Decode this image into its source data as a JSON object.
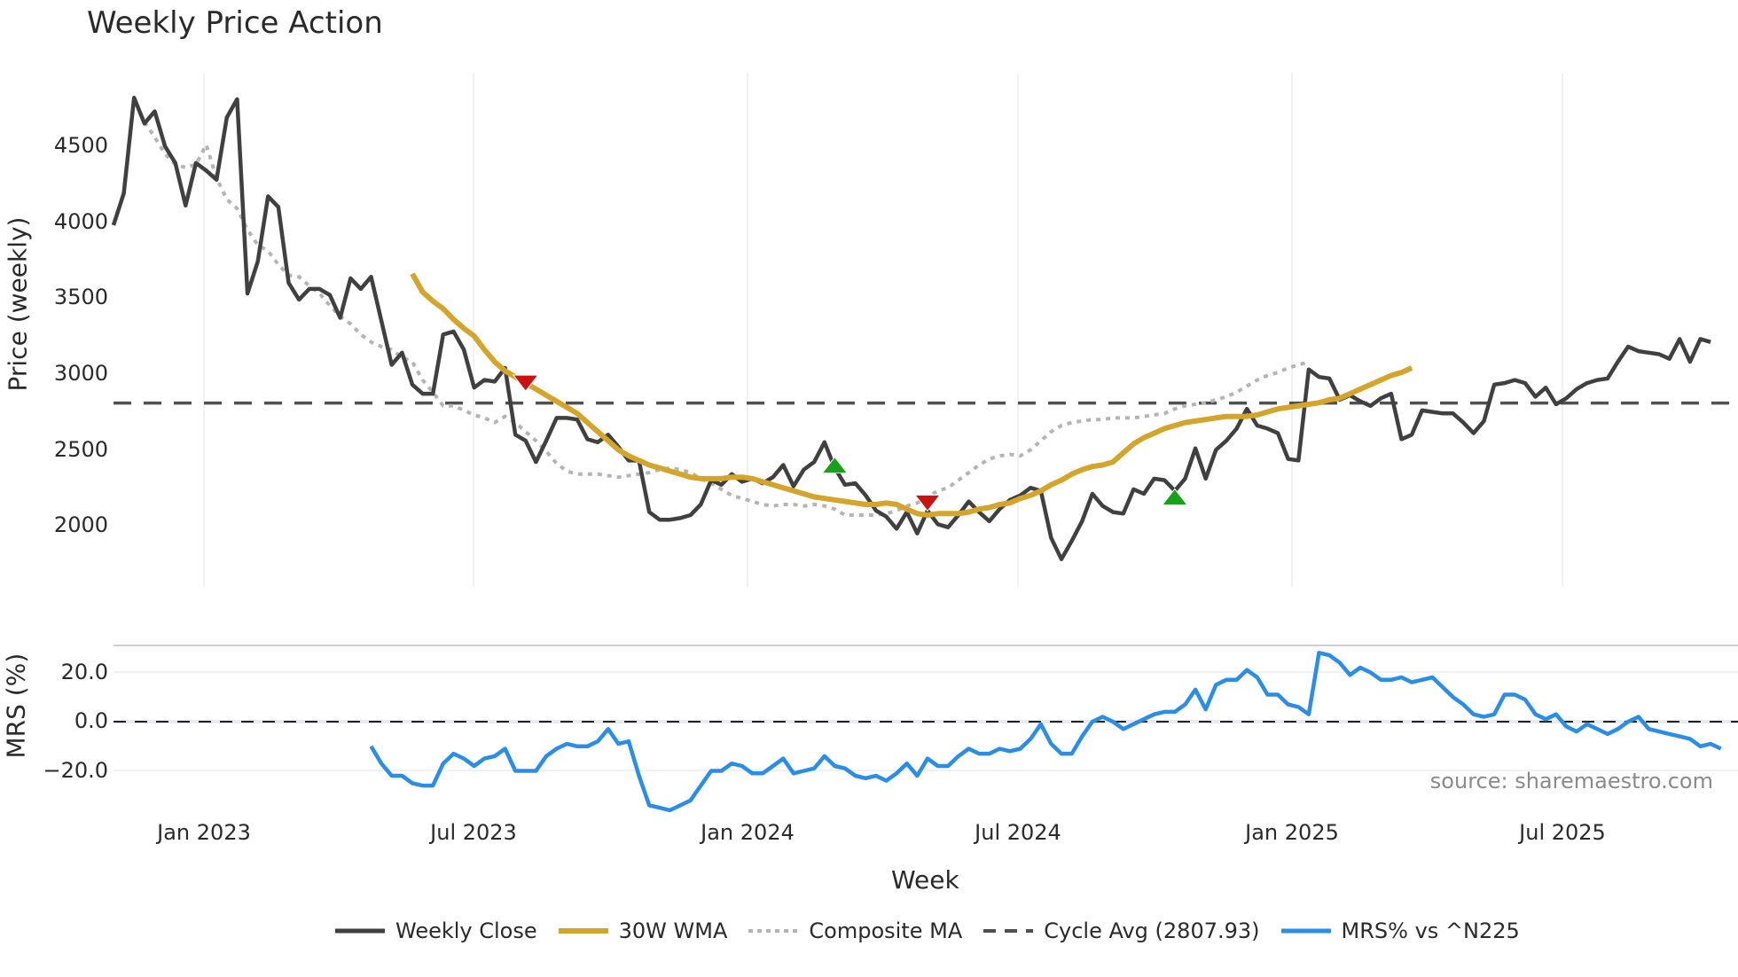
{
  "title": "Weekly Price Action",
  "source": "source: sharemaestro.com",
  "axes": {
    "price_ylabel": "Price (weekly)",
    "mrs_ylabel": "MRS (%)",
    "xlabel": "Week",
    "price_ticks": [
      "4500",
      "4000",
      "3500",
      "3000",
      "2500",
      "2000"
    ],
    "mrs_ticks": [
      "20.0",
      "0.0",
      "−20.0"
    ],
    "x_ticks": [
      "Jan 2023",
      "Jul 2023",
      "Jan 2024",
      "Jul 2024",
      "Jan 2025",
      "Jul 2025"
    ]
  },
  "legend": [
    {
      "label": "Weekly Close",
      "color": "#404040",
      "style": "solid"
    },
    {
      "label": "30W WMA",
      "color": "#d4a52a",
      "style": "solid"
    },
    {
      "label": "Composite MA",
      "color": "#b4b4b4",
      "style": "dotted"
    },
    {
      "label": "Cycle Avg (2807.93)",
      "color": "#505050",
      "style": "dashed"
    },
    {
      "label": "MRS% vs ^N225",
      "color": "#2a8ee8",
      "style": "solid"
    }
  ],
  "chart_data": [
    {
      "type": "line",
      "title": "Weekly Price Action",
      "xlabel": "Week",
      "ylabel": "Price (weekly)",
      "ylim": [
        1600,
        4950
      ],
      "x_start": "2022-10 (weekly)",
      "x_tick_labels": [
        "Jan 2023",
        "Jul 2023",
        "Jan 2024",
        "Jul 2024",
        "Jan 2025",
        "Jul 2025"
      ],
      "grid": "vertical only",
      "legend_position": "bottom",
      "series": [
        {
          "name": "Weekly Close",
          "color": "#404040",
          "values": [
            3980,
            4190,
            4820,
            4650,
            4730,
            4500,
            4390,
            4110,
            4390,
            4340,
            4280,
            4690,
            4810,
            3530,
            3740,
            4170,
            4100,
            3600,
            3490,
            3560,
            3560,
            3520,
            3370,
            3630,
            3560,
            3640,
            3350,
            3060,
            3140,
            2930,
            2870,
            2870,
            3260,
            3280,
            3160,
            2910,
            2960,
            2950,
            3040,
            2600,
            2560,
            2420,
            2560,
            2710,
            2710,
            2700,
            2570,
            2550,
            2600,
            2520,
            2430,
            2430,
            2090,
            2040,
            2040,
            2050,
            2070,
            2140,
            2300,
            2270,
            2340,
            2290,
            2310,
            2280,
            2320,
            2400,
            2260,
            2370,
            2420,
            2550,
            2380,
            2270,
            2280,
            2200,
            2100,
            2060,
            1980,
            2090,
            1950,
            2100,
            2010,
            1990,
            2070,
            2160,
            2090,
            2030,
            2110,
            2170,
            2200,
            2250,
            2230,
            1920,
            1780,
            1900,
            2030,
            2210,
            2130,
            2090,
            2080,
            2240,
            2210,
            2310,
            2300,
            2230,
            2310,
            2510,
            2310,
            2500,
            2560,
            2640,
            2770,
            2660,
            2640,
            2610,
            2440,
            2430,
            3030,
            2980,
            2970,
            2830,
            2860,
            2820,
            2790,
            2840,
            2870,
            2570,
            2600,
            2760,
            2750,
            2740,
            2740,
            2680,
            2610,
            2690,
            2930,
            2940,
            2960,
            2940,
            2850,
            2910,
            2800,
            2840,
            2900,
            2940,
            2960,
            2970,
            3080,
            3180,
            3150,
            3140,
            3130,
            3100,
            3230,
            3080,
            3230,
            3210
          ]
        },
        {
          "name": "30W WMA",
          "color": "#d4a52a",
          "start_index": 29,
          "values": [
            3660,
            3540,
            3480,
            3430,
            3360,
            3300,
            3250,
            3160,
            3080,
            3020,
            2980,
            2940,
            2900,
            2860,
            2820,
            2780,
            2740,
            2680,
            2620,
            2560,
            2500,
            2460,
            2430,
            2400,
            2380,
            2360,
            2340,
            2320,
            2310,
            2310,
            2310,
            2320,
            2320,
            2310,
            2290,
            2270,
            2250,
            2230,
            2210,
            2190,
            2180,
            2170,
            2160,
            2150,
            2140,
            2140,
            2150,
            2140,
            2110,
            2080,
            2070,
            2080,
            2080,
            2080,
            2090,
            2110,
            2120,
            2140,
            2150,
            2180,
            2200,
            2230,
            2270,
            2300,
            2340,
            2370,
            2390,
            2400,
            2420,
            2480,
            2540,
            2580,
            2610,
            2640,
            2660,
            2680,
            2690,
            2700,
            2710,
            2720,
            2720,
            2720,
            2730,
            2750,
            2770,
            2780,
            2790,
            2800,
            2810,
            2830,
            2840,
            2870,
            2900,
            2930,
            2960,
            2990,
            3010,
            3040
          ]
        },
        {
          "name": "Composite MA",
          "color": "#b4b4b4",
          "start_index": 3,
          "values": [
            4660,
            4560,
            4450,
            4380,
            4360,
            4380,
            4510,
            4290,
            4150,
            4090,
            3950,
            3850,
            3810,
            3720,
            3650,
            3640,
            3580,
            3530,
            3450,
            3380,
            3330,
            3260,
            3210,
            3180,
            3160,
            3110,
            3080,
            2960,
            2880,
            2790,
            2790,
            2760,
            2730,
            2710,
            2680,
            2720,
            2680,
            2620,
            2560,
            2490,
            2410,
            2360,
            2340,
            2340,
            2340,
            2330,
            2320,
            2330,
            2340,
            2350,
            2370,
            2380,
            2370,
            2350,
            2310,
            2280,
            2240,
            2200,
            2180,
            2160,
            2140,
            2130,
            2140,
            2140,
            2130,
            2140,
            2130,
            2110,
            2070,
            2070,
            2070,
            2070,
            2080,
            2100,
            2130,
            2150,
            2190,
            2230,
            2250,
            2300,
            2350,
            2400,
            2440,
            2460,
            2470,
            2460,
            2500,
            2560,
            2620,
            2660,
            2680,
            2690,
            2700,
            2700,
            2710,
            2710,
            2710,
            2720,
            2730,
            2740,
            2770,
            2790,
            2800,
            2810,
            2830,
            2850,
            2880,
            2920,
            2960,
            2990,
            3010,
            3040,
            3060,
            3080
          ]
        },
        {
          "name": "Cycle Avg",
          "color": "#505050",
          "constant": 2807.93
        }
      ],
      "markers": [
        {
          "type": "sell",
          "shape": "triangle-down",
          "color": "#cc1111",
          "x_index": 40,
          "value": 2940
        },
        {
          "type": "buy",
          "shape": "triangle-up",
          "color": "#1aa11a",
          "x_index": 70,
          "value": 2400
        },
        {
          "type": "sell",
          "shape": "triangle-down",
          "color": "#cc1111",
          "x_index": 79,
          "value": 2150
        },
        {
          "type": "buy",
          "shape": "triangle-up",
          "color": "#1aa11a",
          "x_index": 103,
          "value": 2190
        }
      ]
    },
    {
      "type": "line",
      "title": "MRS",
      "ylabel": "MRS (%)",
      "ylim": [
        -38,
        32
      ],
      "series": [
        {
          "name": "MRS% vs ^N225",
          "color": "#2a8ee8",
          "start_index": 25,
          "values": [
            -10,
            -17,
            -22,
            -22,
            -25,
            -26,
            -26,
            -17,
            -13,
            -15,
            -18,
            -15,
            -14,
            -11,
            -20,
            -20,
            -20,
            -14,
            -11,
            -9,
            -10,
            -10,
            -8,
            -3,
            -9,
            -8,
            -22,
            -34,
            -35,
            -36,
            -34,
            -32,
            -26,
            -20,
            -20,
            -17,
            -18,
            -21,
            -21,
            -18,
            -15,
            -21,
            -20,
            -19,
            -14,
            -18,
            -19,
            -22,
            -23,
            -22,
            -24,
            -21,
            -17,
            -22,
            -15,
            -18,
            -18,
            -14,
            -11,
            -13,
            -13,
            -11,
            -12,
            -11,
            -7,
            -1,
            -9,
            -13,
            -13,
            -6,
            0,
            2,
            0,
            -3,
            -1,
            1,
            3,
            4,
            4,
            7,
            13,
            5,
            15,
            17,
            17,
            21,
            18,
            11,
            11,
            7,
            6,
            3,
            28,
            27,
            24,
            19,
            22,
            20,
            17,
            17,
            18,
            16,
            17,
            18,
            14,
            10,
            7,
            3,
            2,
            3,
            11,
            11,
            9,
            3,
            1,
            3,
            -2,
            -4,
            -1,
            -3,
            -5,
            -3,
            0,
            2,
            -3,
            -4,
            -5,
            -6,
            -7,
            -10,
            -9,
            -11
          ]
        },
        {
          "name": "Zero line",
          "color": "#222222",
          "constant": 0
        }
      ]
    }
  ]
}
